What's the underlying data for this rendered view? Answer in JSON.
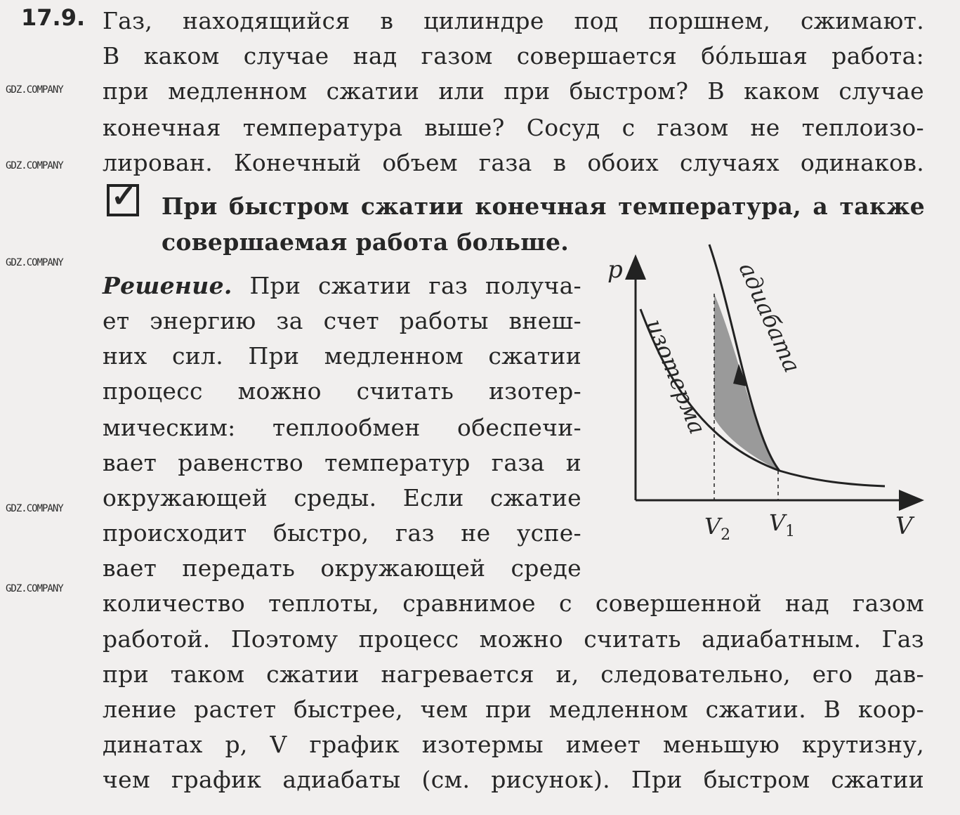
{
  "problem": {
    "number": "17.9.",
    "lines": [
      "Газ, находящийся в цилиндре под поршнем, сжимают.",
      "В каком случае над газом совершается бóльшая работа:",
      "при медленном сжатии или при быстром? В каком случае",
      "конечная температура выше? Сосуд с газом не теплоизо-",
      "лирован. Конечный объем газа в обоих случаях одинаков."
    ]
  },
  "answer": {
    "checkbox_checked": true,
    "lines": [
      "При быстром сжатии конечная температура, а также",
      "совершаемая работа больше."
    ]
  },
  "solution": {
    "heading": "Решение.",
    "first_line_rest": "При сжатии газ получа-",
    "narrow_lines": [
      "ет энергию за счет работы внеш-",
      "них сил. При медленном сжатии",
      "процесс можно считать изотер-",
      "мическим: теплообмен обеспечи-",
      "вает равенство температур газа и",
      "окружающей среды. Если сжатие",
      "происходит быстро, газ не успе-",
      "вает передать окружающей среде"
    ],
    "wide_lines": [
      "количество теплоты, сравнимое с совершенной над газом",
      "работой. Поэтому процесс можно считать адиабатным. Газ",
      "при таком сжатии нагревается и, следовательно, его дав-",
      "ление растет быстрее, чем при медленном сжатии. В коор-",
      "динатах p, V график изотермы имеет меньшую крутизну,",
      "чем график адиабаты (см. рисунок). При быстром сжатии"
    ]
  },
  "figure": {
    "y_axis_label": "p",
    "x_axis_label": "V",
    "v2_label": "V",
    "v2_sub": "2",
    "v1_label": "V",
    "v1_sub": "1",
    "isotherm_label": "изотерма",
    "adiabat_label": "адиабата"
  },
  "watermark": "GDZ.COMPANY"
}
